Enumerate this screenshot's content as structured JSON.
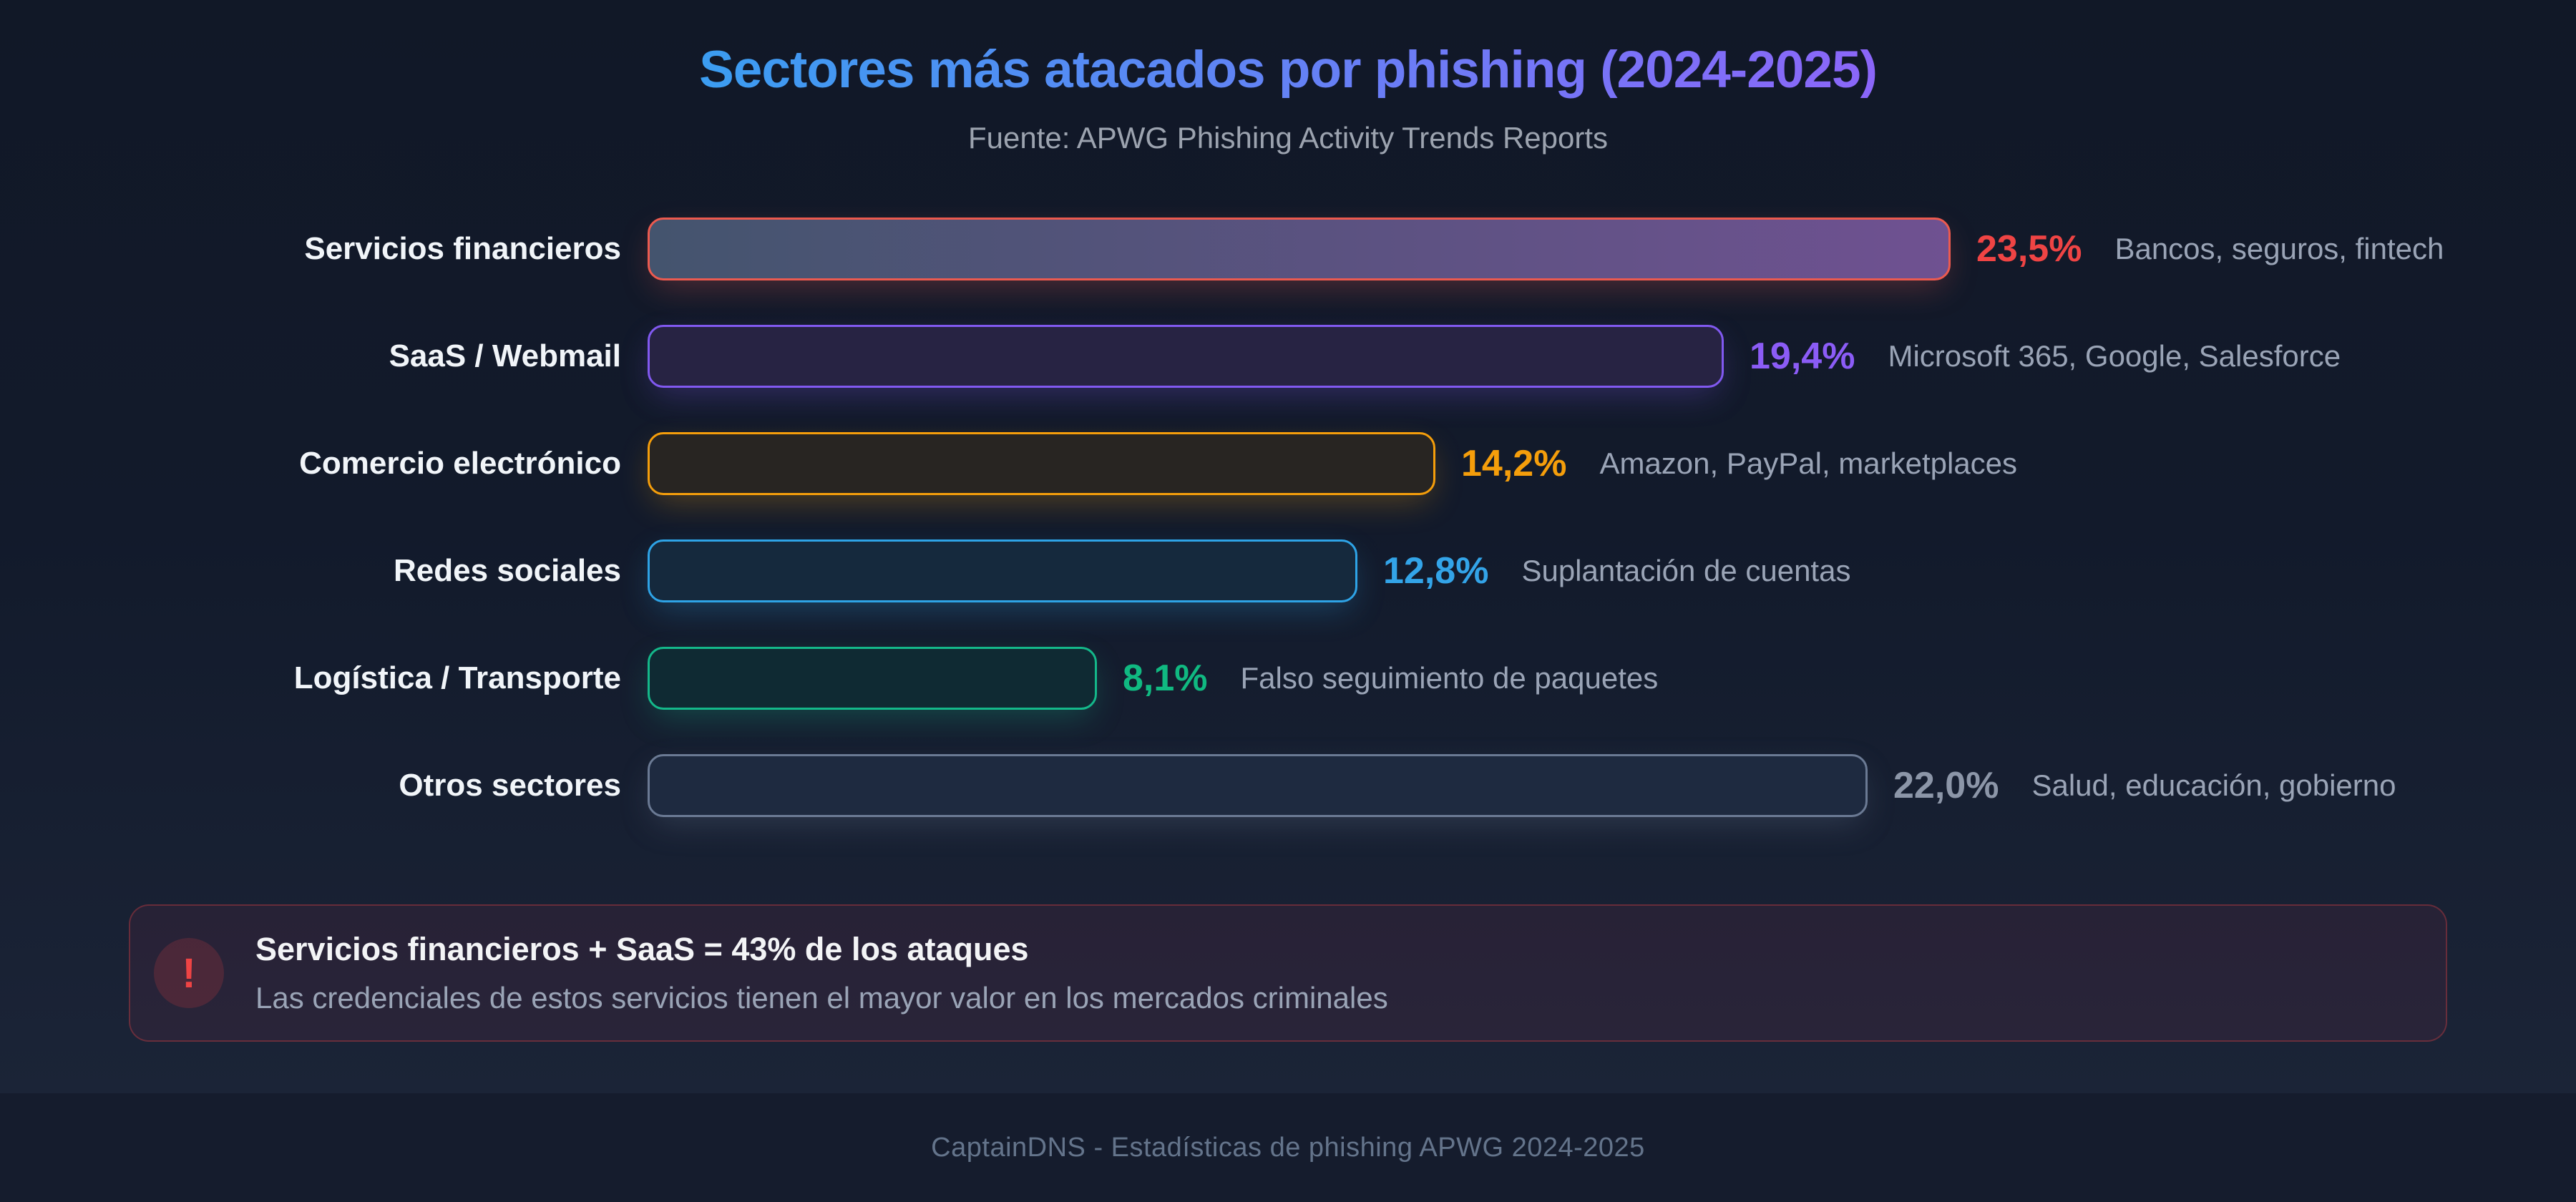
{
  "page": {
    "title": "Sectores más atacados por phishing (2024-2025)",
    "subtitle": "Fuente: APWG Phishing Activity Trends Reports",
    "footer": "CaptainDNS - Estadísticas de phishing APWG 2024-2025"
  },
  "theme": {
    "title_gradient_from": "#3B9DF1",
    "title_gradient_to": "#8B66F9",
    "subtitle_color": "#9CA3AF",
    "label_color": "#F1F5F9",
    "description_color": "#9AA4B6",
    "footer_color": "#64748B",
    "background_top": "#111827",
    "background_bottom": "#1B2437",
    "footer_band": "#151C2D"
  },
  "chart_data": {
    "type": "bar",
    "orientation": "horizontal",
    "title": "Sectores más atacados por phishing (2024-2025)",
    "source": "Fuente: APWG Phishing Activity Trends Reports",
    "categories": [
      "Servicios financieros",
      "SaaS / Webmail",
      "Comercio electrónico",
      "Redes sociales",
      "Logística / Transporte",
      "Otros sectores"
    ],
    "values": [
      23.5,
      19.4,
      14.2,
      12.8,
      8.1,
      22.0
    ],
    "value_labels": [
      "23,5%",
      "19,4%",
      "14,2%",
      "12,8%",
      "8,1%",
      "22,0%"
    ],
    "descriptions": [
      "Bancos, seguros, fintech",
      "Microsoft 365, Google, Salesforce",
      "Amazon, PayPal, marketplaces",
      "Suplantación de cuentas",
      "Falso seguimiento de paquetes",
      "Salud, educación, gobierno"
    ],
    "bar_border_colors": [
      "#EC5A4F",
      "#8159F0",
      "#F59E0B",
      "#2EA3E6",
      "#14B88A",
      "#6B7A94"
    ],
    "value_colors": [
      "#EF4444",
      "#8B5CF6",
      "#F59E0B",
      "#33A4E8",
      "#10B981",
      "#8C96A8"
    ],
    "bar_fills": [
      [
        "#44546E",
        "#6F5191"
      ],
      [
        "#272343",
        "#272343"
      ],
      [
        "#282522",
        "#282522"
      ],
      [
        "#15293D",
        "#15293D"
      ],
      [
        "#0F2A33",
        "#0F2A33"
      ],
      [
        "#1E2A40",
        "#1E2A40"
      ]
    ],
    "xlim": [
      0,
      25
    ],
    "grid": false,
    "legend": false
  },
  "callout": {
    "icon": "alert-exclamation-icon",
    "icon_glyph": "!",
    "icon_color": "#EF4444",
    "title": "Servicios financieros + SaaS = 43% de los ataques",
    "subtitle": "Las credenciales de estos servicios tienen el mayor valor en los mercados criminales"
  }
}
